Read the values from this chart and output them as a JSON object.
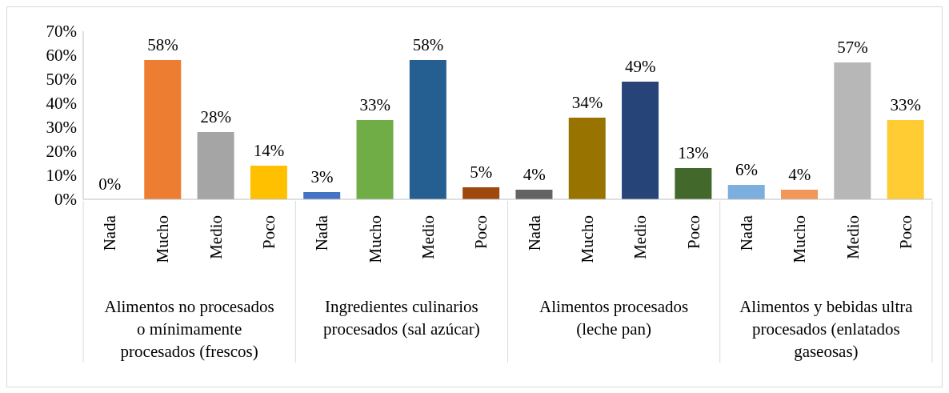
{
  "chart_data": {
    "type": "bar",
    "categories": [
      "Nada",
      "Mucho",
      "Medio",
      "Poco",
      "Nada",
      "Mucho",
      "Medio",
      "Poco",
      "Nada",
      "Mucho",
      "Medio",
      "Poco",
      "Nada",
      "Mucho",
      "Medio",
      "Poco"
    ],
    "values": [
      0,
      58,
      28,
      14,
      3,
      33,
      58,
      5,
      4,
      34,
      49,
      13,
      6,
      4,
      57,
      33
    ],
    "colors": [
      "#5b9bd5",
      "#ed7d31",
      "#a5a5a5",
      "#ffc000",
      "#4472c4",
      "#70ad47",
      "#255e91",
      "#9e480e",
      "#636363",
      "#997300",
      "#264478",
      "#43682b",
      "#7cafdd",
      "#f1975a",
      "#b7b7b7",
      "#ffcd33"
    ],
    "value_labels": [
      "0%",
      "58%",
      "28%",
      "14%",
      "3%",
      "33%",
      "58%",
      "5%",
      "4%",
      "34%",
      "49%",
      "13%",
      "6%",
      "4%",
      "57%",
      "33%"
    ],
    "annotations": [
      "Alimentos no procesados o mínimamente procesados (frescos)",
      "Ingredientes culinarios procesados (sal azúcar)",
      "Alimentos procesados (leche  pan)",
      "Alimentos y bebidas ultra procesados (enlatados gaseosas)"
    ],
    "ylim": [
      0,
      70
    ],
    "yticks": [
      {
        "value": 0,
        "label": "0%"
      },
      {
        "value": 10,
        "label": "10%"
      },
      {
        "value": 20,
        "label": "20%"
      },
      {
        "value": 30,
        "label": "30%"
      },
      {
        "value": 40,
        "label": "40%"
      },
      {
        "value": 50,
        "label": "50%"
      },
      {
        "value": 60,
        "label": "60%"
      },
      {
        "value": 70,
        "label": "70%"
      }
    ]
  }
}
